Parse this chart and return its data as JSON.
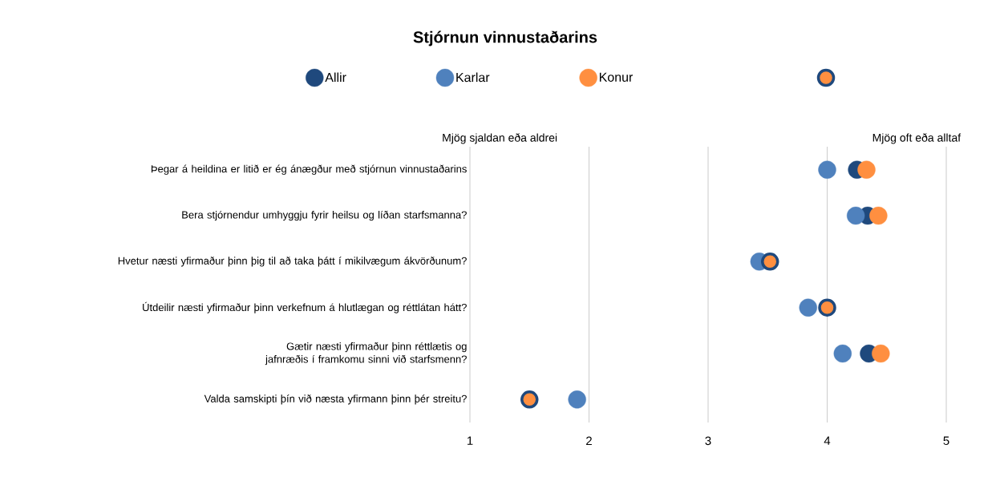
{
  "chart_data": {
    "type": "scatter",
    "orientation": "horizontal",
    "title": "Stjórnun vinnustaðarins",
    "categories": [
      "Þegar á heildina er litið er ég ánægður með stjórnun vinnustaðarins",
      "Bera stjórnendur umhyggju fyrir heilsu og líðan starfsmanna?",
      "Hvetur næsti yfirmaður þinn þig til að taka þátt í mikilvægum ákvörðunum?",
      "Útdeilir næsti yfirmaður þinn verkefnum á hlutlægan og réttlátan hátt?",
      "Gætir næsti yfirmaður þinn réttlætis og jafnræðis í framkomu sinni við starfsmenn?",
      "Valda samskipti þín við næsta yfirmann þinn þér streitu?"
    ],
    "series": [
      {
        "name": "Allir",
        "color": "#1f497d",
        "values": [
          4.25,
          4.34,
          null,
          null,
          4.35,
          null
        ]
      },
      {
        "name": "Karlar",
        "color": "#4f81bd",
        "values": [
          4.0,
          4.24,
          3.43,
          3.84,
          4.13,
          1.9
        ]
      },
      {
        "name": "Konur",
        "color": "#ff8f40",
        "values": [
          4.33,
          4.43,
          null,
          null,
          4.45,
          null
        ]
      },
      {
        "color": "#ff8f40",
        "values": [
          null,
          null,
          3.52,
          4.0,
          null,
          1.5
        ]
      }
    ],
    "xlim": [
      1,
      5
    ],
    "xticks": [
      1,
      2,
      3,
      4,
      5
    ],
    "grid": "x",
    "legend": "top",
    "marker": "circle",
    "annotations": [
      "Mjög sjaldan eða aldrei",
      "Mjög oft eða alltaf"
    ]
  }
}
